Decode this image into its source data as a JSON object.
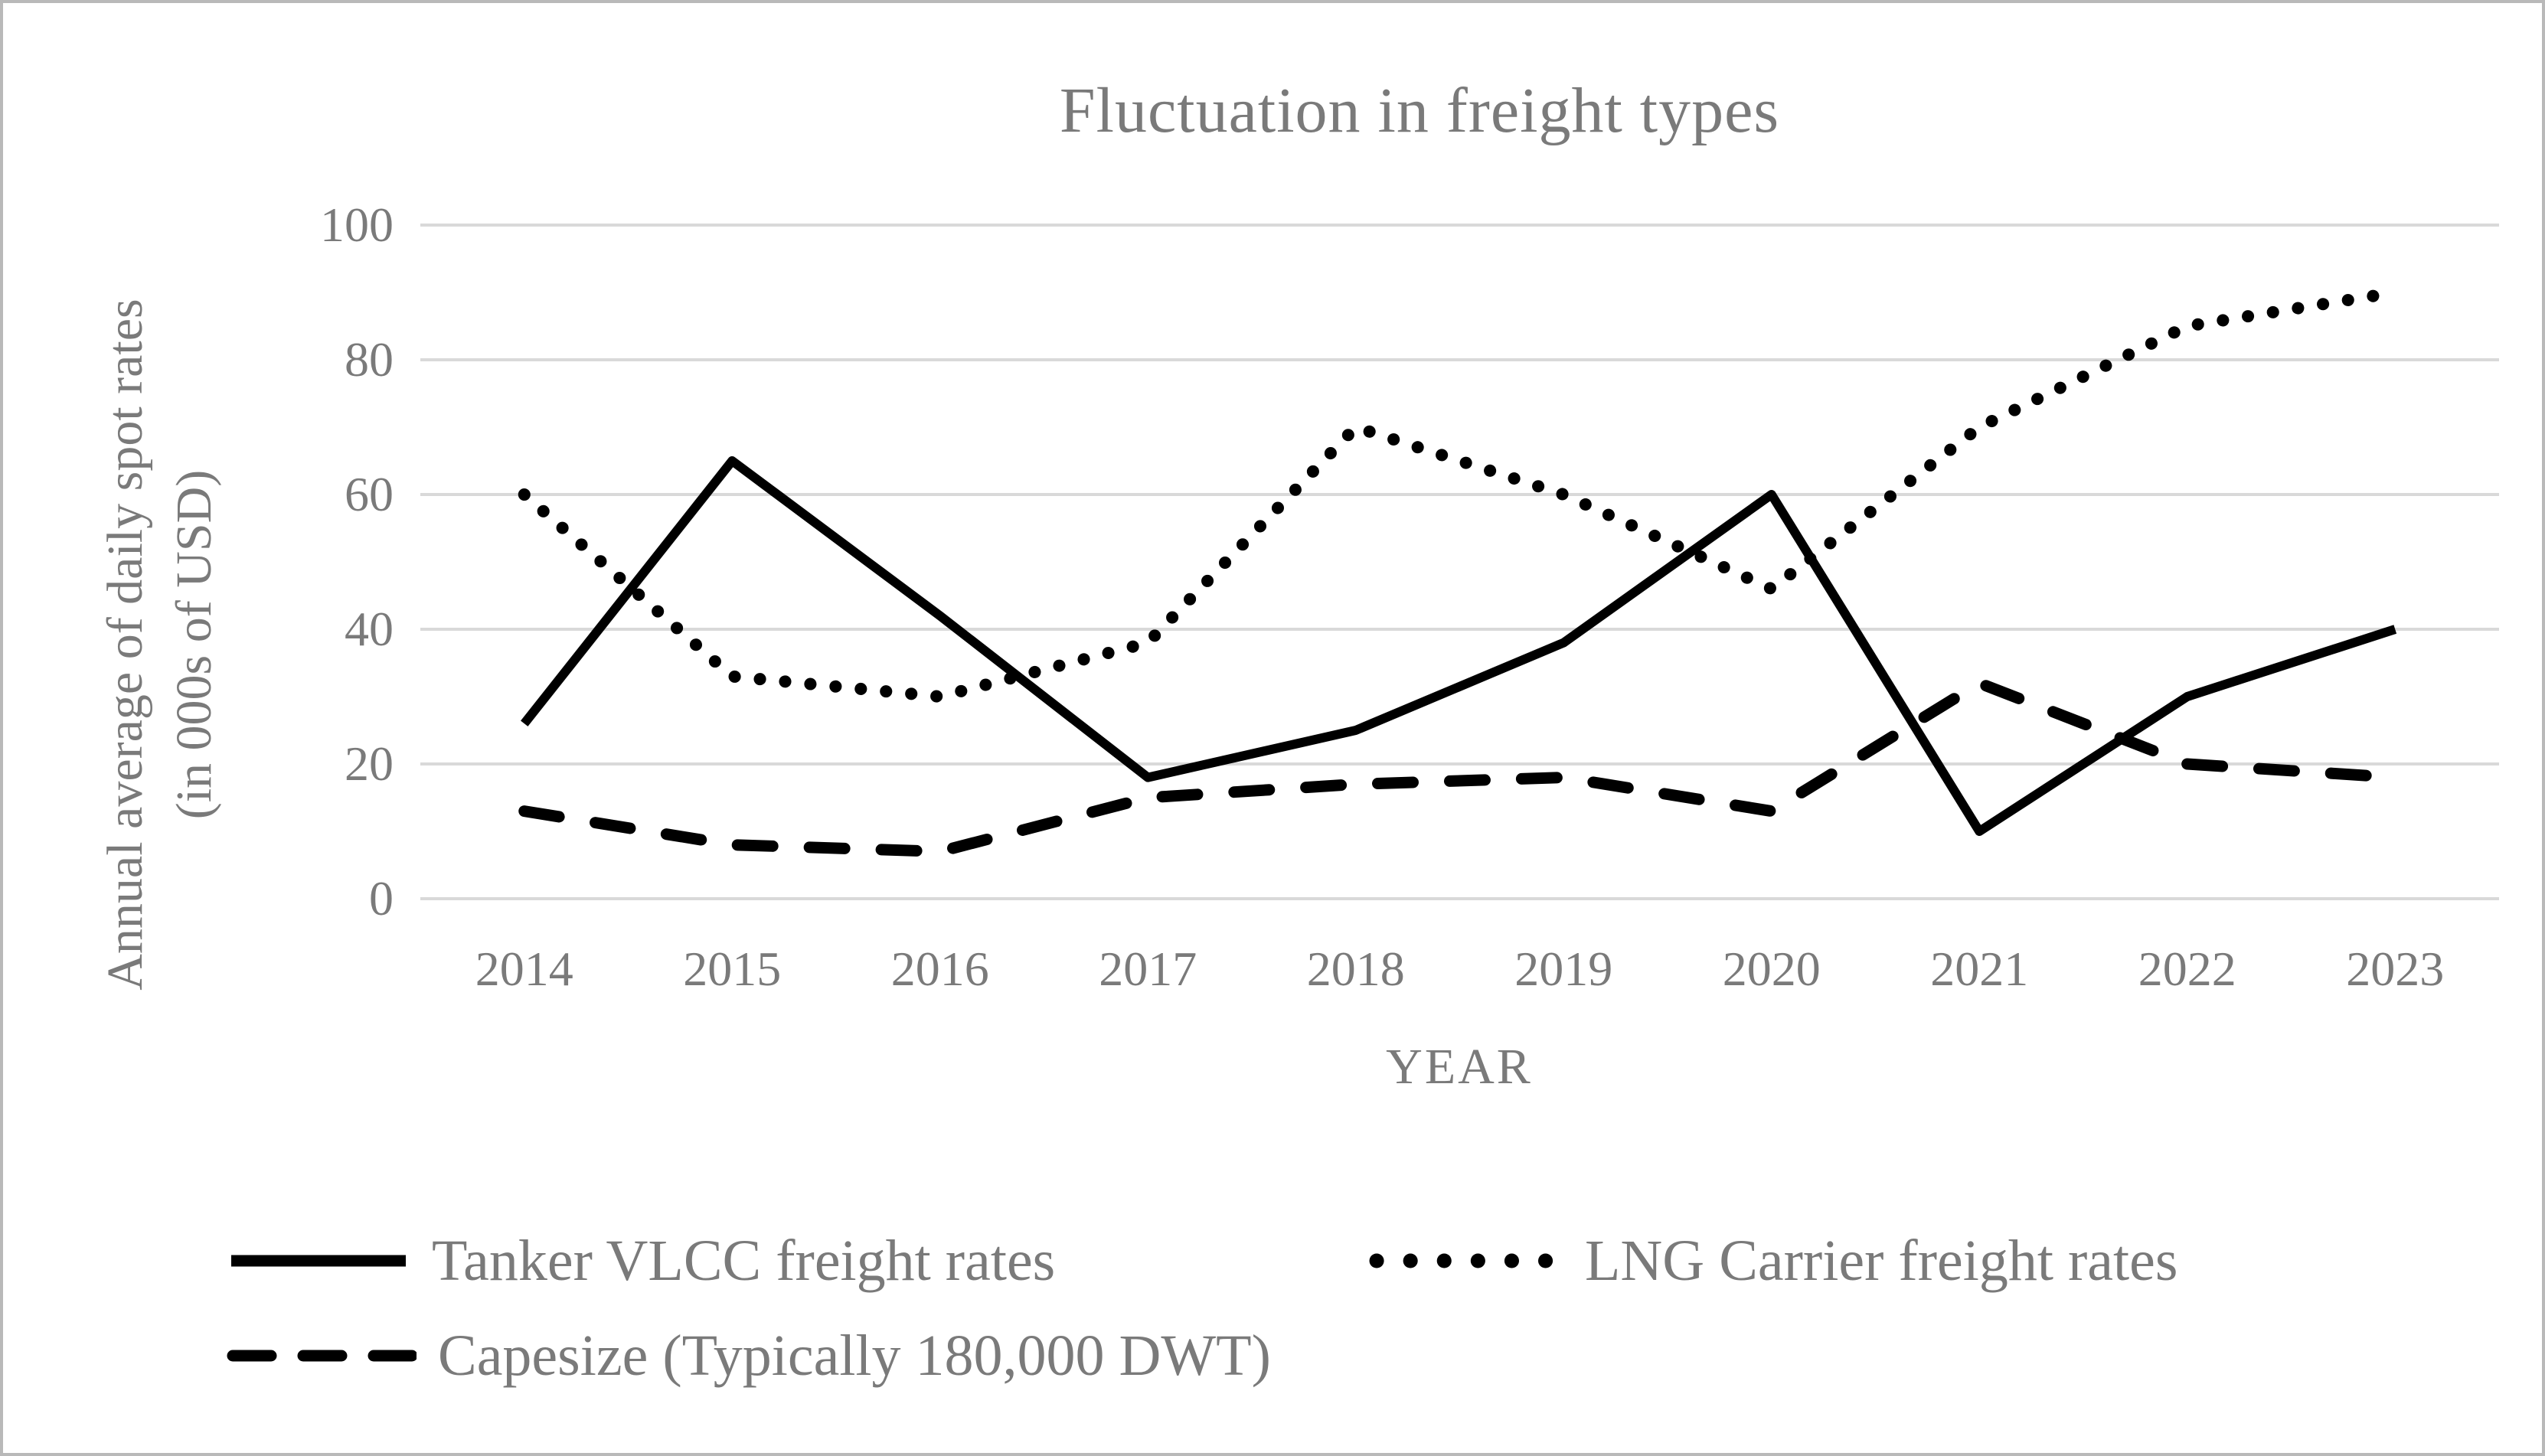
{
  "figure": {
    "y_axis_title_line1": "Annual average of daily spot rates",
    "y_axis_title_line2": "(in 000s of USD)"
  },
  "colors": {
    "series": "#000000",
    "text": "#7a7a7a",
    "gridline": "#d9d9d9",
    "frame": "#b9b9b9",
    "background": "#ffffff"
  },
  "chart_data": {
    "type": "line",
    "title": "Fluctuation in freight types",
    "xlabel": "YEAR",
    "ylabel": "Annual average of daily spot rates (in 000s of USD)",
    "categories": [
      "2014",
      "2015",
      "2016",
      "2017",
      "2018",
      "2019",
      "2020",
      "2021",
      "2022",
      "2023"
    ],
    "ylim": [
      0,
      100
    ],
    "yticks": [
      0,
      20,
      40,
      60,
      80,
      100
    ],
    "grid": "horizontal",
    "legend_position": "bottom",
    "series": [
      {
        "name": "Tanker VLCC freight rates",
        "style": "solid",
        "values": [
          26,
          65,
          42,
          18,
          25,
          38,
          60,
          10,
          30,
          40
        ]
      },
      {
        "name": "LNG Carrier freight rates",
        "style": "dotted",
        "values": [
          60,
          33,
          30,
          38,
          70,
          60,
          46,
          70,
          85,
          90
        ]
      },
      {
        "name": "Capesize (Typically 180,000 DWT)",
        "style": "dashed",
        "values": [
          13,
          8,
          7,
          15,
          17,
          18,
          13,
          32,
          20,
          18
        ]
      }
    ]
  }
}
